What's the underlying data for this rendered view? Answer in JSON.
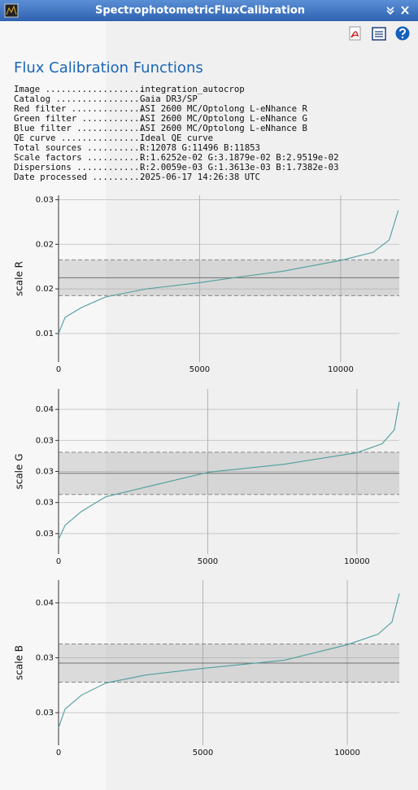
{
  "window": {
    "title": "SpectrophotometricFluxCalibration"
  },
  "heading": "Flux Calibration Functions",
  "info": [
    {
      "key": "Image ...................",
      "value": "integration_autocrop"
    },
    {
      "key": "Catalog .................",
      "value": "Gaia DR3/SP"
    },
    {
      "key": "Red filter ..............",
      "value": "ASI 2600 MC/Optolong L-eNhance R"
    },
    {
      "key": "Green filter ............",
      "value": "ASI 2600 MC/Optolong L-eNhance G"
    },
    {
      "key": "Blue filter .............",
      "value": "ASI 2600 MC/Optolong L-eNhance B"
    },
    {
      "key": "QE curve ................",
      "value": "Ideal QE curve"
    },
    {
      "key": "Total sources ...........",
      "value": "R:12078 G:11496 B:11853"
    },
    {
      "key": "Scale factors ...........",
      "value": "R:1.6252e-02 G:3.1879e-02 B:2.9519e-02"
    },
    {
      "key": "Dispersions .............",
      "value": "R:2.0059e-03 G:1.3613e-03 B:1.7382e-03"
    },
    {
      "key": "Date processed ..........",
      "value": "2025-06-17 14:26:38 UTC"
    }
  ],
  "chart_data": [
    {
      "type": "line",
      "ylabel": "scale R",
      "xlim": [
        0,
        12078
      ],
      "ylim": [
        0.0068,
        0.0255
      ],
      "xticks": [
        0,
        5000,
        10000
      ],
      "yticks": [
        {
          "value": 0.01,
          "label": "0.01"
        },
        {
          "value": 0.015,
          "label": "0.02"
        },
        {
          "value": 0.02,
          "label": "0.02"
        },
        {
          "value": 0.025,
          "label": "0.03"
        }
      ],
      "mean": 0.016252,
      "dispersion": 0.0020059,
      "grid": true,
      "x": [
        0,
        230,
        805,
        1667,
        3100,
        5000,
        6550,
        7990,
        10000,
        11150,
        11724,
        12040
      ],
      "series": [
        {
          "color": "#4f9d9d",
          "values": [
            0.01,
            0.0118,
            0.0129,
            0.0141,
            0.015,
            0.0157,
            0.0164,
            0.017,
            0.0182,
            0.0191,
            0.0205,
            0.0238
          ]
        }
      ]
    },
    {
      "type": "line",
      "ylabel": "scale G",
      "xlim": [
        0,
        11420
      ],
      "ylim": [
        0.02668,
        0.03732
      ],
      "xticks": [
        0,
        5000,
        10000
      ],
      "yticks": [
        {
          "value": 0.028,
          "label": "0.03"
        },
        {
          "value": 0.03,
          "label": "0.03"
        },
        {
          "value": 0.032,
          "label": "0.03"
        },
        {
          "value": 0.034,
          "label": "0.03"
        },
        {
          "value": 0.036,
          "label": "0.04"
        }
      ],
      "mean": 0.031879,
      "dispersion": 0.0013613,
      "grid": true,
      "x": [
        0,
        218,
        763,
        1580,
        2943,
        5015,
        7574,
        10000,
        10845,
        11253,
        11417
      ],
      "series": [
        {
          "color": "#4f9d9d",
          "values": [
            0.02763,
            0.02853,
            0.02942,
            0.03037,
            0.031,
            0.03195,
            0.03247,
            0.03321,
            0.03379,
            0.03468,
            0.03647
          ]
        }
      ]
    },
    {
      "type": "line",
      "ylabel": "scale B",
      "xlim": [
        0,
        11803
      ],
      "ylim": [
        0.02204,
        0.03707
      ],
      "xticks": [
        0,
        5000,
        10000
      ],
      "yticks": [
        {
          "value": 0.025,
          "label": "0.03"
        },
        {
          "value": 0.03,
          "label": "0.03"
        },
        {
          "value": 0.035,
          "label": "0.04"
        }
      ],
      "mean": 0.029519,
      "dispersion": 0.0017382,
      "grid": true,
      "x": [
        0,
        225,
        789,
        1634,
        3042,
        5014,
        7831,
        10000,
        11070,
        11549,
        11803
      ],
      "series": [
        {
          "color": "#4f9d9d",
          "values": [
            0.02363,
            0.02533,
            0.02659,
            0.0277,
            0.02844,
            0.02904,
            0.02978,
            0.03119,
            0.03215,
            0.03326,
            0.03585
          ]
        }
      ]
    }
  ]
}
